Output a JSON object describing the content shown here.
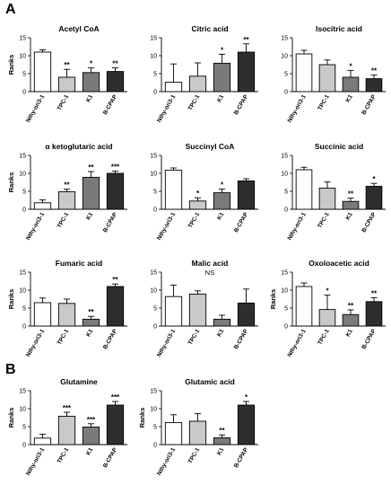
{
  "panels": [
    {
      "letter": "A"
    },
    {
      "letter": "B"
    }
  ],
  "styles": {
    "bar_fills": [
      "#ffffff",
      "#c9c9c9",
      "#7a7a7a",
      "#2e2e2e"
    ],
    "stroke": "#000000"
  },
  "chart_data": [
    {
      "type": "bar",
      "title": "Acetyl CoA",
      "ylabel": "Ranks",
      "ylim": [
        0,
        15
      ],
      "yticks": [
        "0",
        "5",
        "10",
        "15"
      ],
      "categories": [
        "Nthy-ori3-1",
        "TPC-1",
        "K1",
        "B-CPAP"
      ],
      "values": [
        11,
        4,
        5.3,
        5.6
      ],
      "errors": [
        0.6,
        2.2,
        1.3,
        1.0
      ],
      "annotations": [
        "",
        "**",
        "*",
        "**"
      ]
    },
    {
      "type": "bar",
      "title": "Citric acid",
      "ylabel": "",
      "ylim": [
        0,
        15
      ],
      "yticks": [
        "0",
        "5",
        "10",
        "15"
      ],
      "categories": [
        "Nthy-ori3-1",
        "TPC-1",
        "K1",
        "B-CPAP"
      ],
      "values": [
        2.6,
        4.3,
        7.9,
        11
      ],
      "errors": [
        5.1,
        3.7,
        2.5,
        2.3
      ],
      "annotations": [
        "",
        "",
        "*",
        "**"
      ]
    },
    {
      "type": "bar",
      "title": "Isocitric acid",
      "ylabel": "",
      "ylim": [
        0,
        15
      ],
      "yticks": [
        "0",
        "5",
        "10",
        "15"
      ],
      "categories": [
        "Nthy-ori3-1",
        "TPC-1",
        "K1",
        "B-CPAP"
      ],
      "values": [
        10.5,
        7.5,
        4,
        3.6
      ],
      "errors": [
        1.0,
        1.3,
        1.9,
        1.0
      ],
      "annotations": [
        "",
        "",
        "*",
        "**"
      ]
    },
    {
      "type": "bar",
      "title": "α ketoglutaric acid",
      "ylabel": "Ranks",
      "ylim": [
        0,
        15
      ],
      "yticks": [
        "0",
        "5",
        "10",
        "15"
      ],
      "categories": [
        "Nthy-ori3-1",
        "TPC-1",
        "K1",
        "B-CPAP"
      ],
      "values": [
        1.8,
        4.9,
        8.9,
        10
      ],
      "errors": [
        0.8,
        0.7,
        1.6,
        0.6
      ],
      "annotations": [
        "",
        "**",
        "**",
        "***"
      ]
    },
    {
      "type": "bar",
      "title": "Succinyl CoA",
      "ylabel": "",
      "ylim": [
        0,
        15
      ],
      "yticks": [
        "0",
        "5",
        "10",
        "15"
      ],
      "categories": [
        "Nthy-ori3-1",
        "TPC-1",
        "K1",
        "B-CPAP"
      ],
      "values": [
        10.9,
        2.3,
        4.6,
        7.9
      ],
      "errors": [
        0.6,
        0.9,
        1.0,
        0.6
      ],
      "annotations": [
        "",
        "*",
        "*",
        ""
      ]
    },
    {
      "type": "bar",
      "title": "Succinic acid",
      "ylabel": "",
      "ylim": [
        0,
        15
      ],
      "yticks": [
        "0",
        "5",
        "10",
        "15"
      ],
      "categories": [
        "Nthy-ori3-1",
        "TPC-1",
        "K1",
        "B-CPAP"
      ],
      "values": [
        11,
        5.9,
        2.2,
        6.4
      ],
      "errors": [
        0.7,
        1.7,
        0.9,
        0.8
      ],
      "annotations": [
        "",
        "",
        "**",
        "*"
      ]
    },
    {
      "type": "bar",
      "title": "Fumaric acid",
      "ylabel": "Ranks",
      "ylim": [
        0,
        15
      ],
      "yticks": [
        "0",
        "5",
        "10",
        "15"
      ],
      "categories": [
        "Nthy-ori3-1",
        "TPC-1",
        "K1",
        "B-CPAP"
      ],
      "values": [
        6.5,
        6.3,
        1.9,
        11
      ],
      "errors": [
        1.3,
        1.2,
        0.8,
        0.7
      ],
      "annotations": [
        "",
        "",
        "**",
        "**"
      ]
    },
    {
      "type": "bar",
      "title": "Malic acid",
      "ylabel": "",
      "ylim": [
        0,
        15
      ],
      "yticks": [
        "0",
        "5",
        "10",
        "15"
      ],
      "categories": [
        "Nthy-ori3-1",
        "TPC-1",
        "K1",
        "B-CPAP"
      ],
      "values": [
        8.2,
        8.9,
        1.9,
        6.4
      ],
      "errors": [
        3.2,
        0.9,
        1.1,
        3.9
      ],
      "annotations": [
        "",
        "",
        "",
        ""
      ],
      "note": "NS"
    },
    {
      "type": "bar",
      "title": "Oxoloacetic acid",
      "ylabel": "Ranks",
      "ylim": [
        0,
        15
      ],
      "yticks": [
        "0",
        "5",
        "10",
        "15"
      ],
      "categories": [
        "Nthy-ori3-1",
        "TPC-1",
        "K1",
        "B-CPAP"
      ],
      "values": [
        11,
        4.6,
        3.2,
        6.8
      ],
      "errors": [
        1.0,
        4.0,
        1.3,
        1.1
      ],
      "annotations": [
        "",
        "*",
        "**",
        "**"
      ]
    },
    {
      "type": "bar",
      "title": "Glutamine",
      "ylabel": "Ranks",
      "ylim": [
        0,
        15
      ],
      "yticks": [
        "0",
        "5",
        "10",
        "15"
      ],
      "categories": [
        "Nthy-ori3-1",
        "TPC-1",
        "K1",
        "B-CPAP"
      ],
      "values": [
        1.8,
        7.9,
        4.9,
        11
      ],
      "errors": [
        1.1,
        1.1,
        0.9,
        1.0
      ],
      "annotations": [
        "",
        "***",
        "***",
        "***"
      ]
    },
    {
      "type": "bar",
      "title": "Glutamic acid",
      "ylabel": "Ranks",
      "ylim": [
        0,
        15
      ],
      "yticks": [
        "0",
        "5",
        "10",
        "15"
      ],
      "categories": [
        "Nthy-ori3-1",
        "TPC-1",
        "K1",
        "B-CPAP"
      ],
      "values": [
        6.1,
        6.5,
        1.9,
        11
      ],
      "errors": [
        2.2,
        2.1,
        0.8,
        1.0
      ],
      "annotations": [
        "",
        "",
        "**",
        "*"
      ]
    }
  ]
}
